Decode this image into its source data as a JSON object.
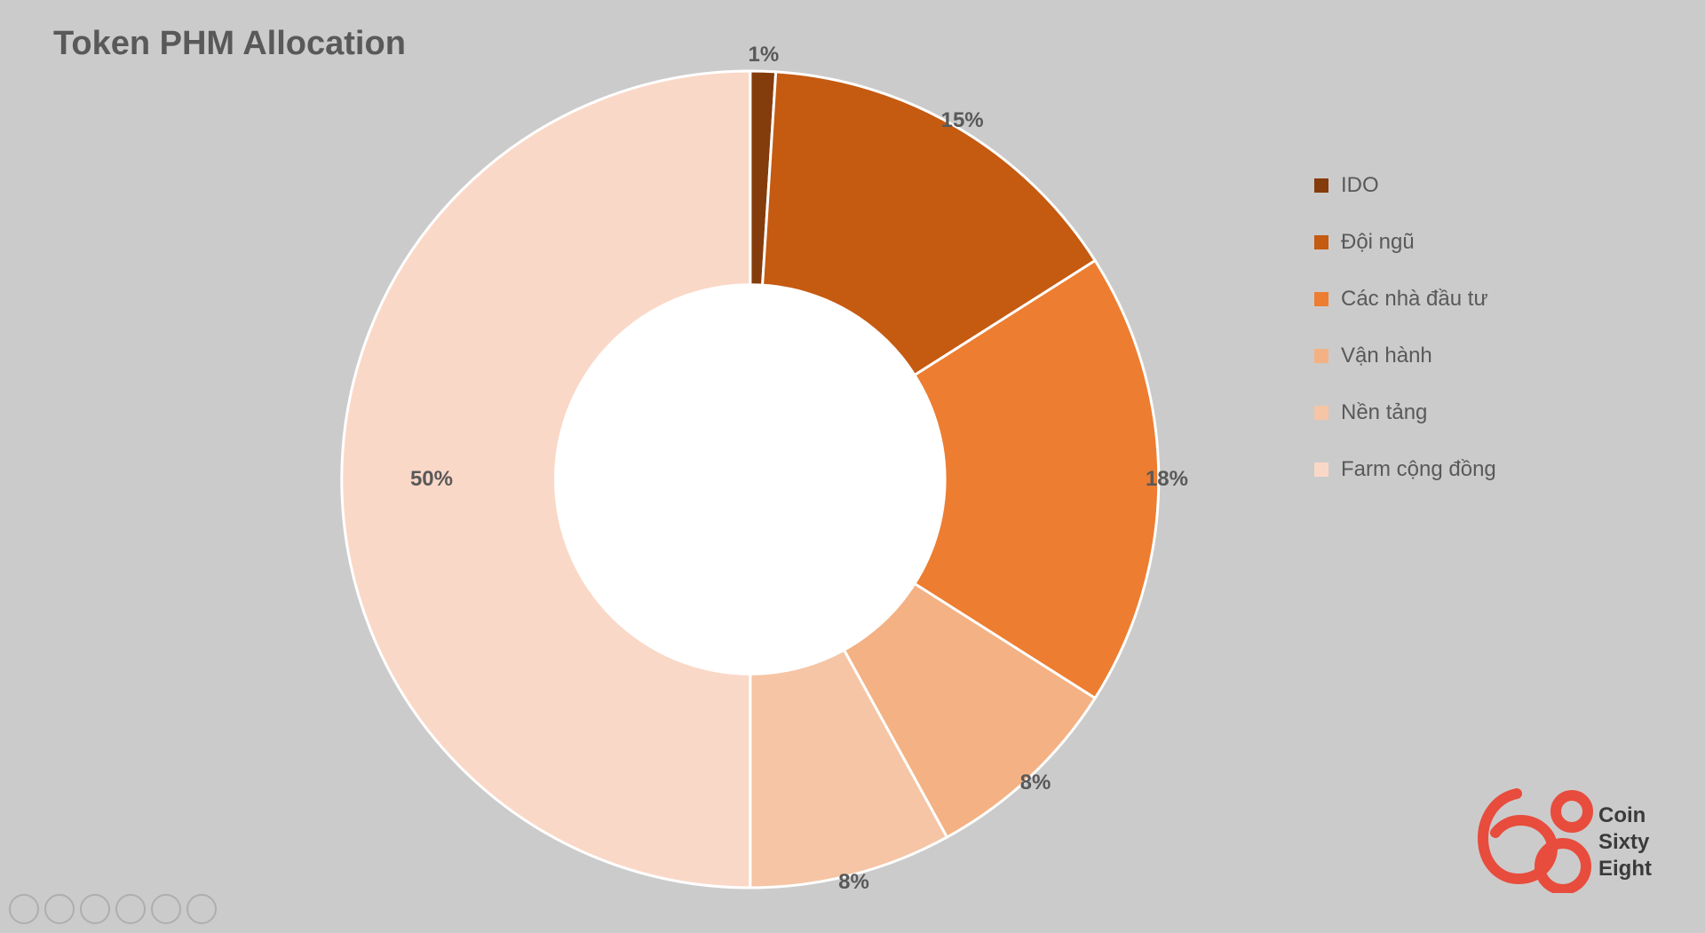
{
  "title": "Token PHM Allocation",
  "chart": {
    "type": "donut",
    "inner_radius_ratio": 0.48,
    "outer_radius": 460,
    "background_color": "#cccbcb",
    "center_hole_color": "#ffffff",
    "slice_border_color": "#ffffff",
    "slice_border_width": 3,
    "label_fontsize": 24,
    "label_fontweight": 600,
    "label_color": "#595959",
    "slices": [
      {
        "label": "IDO",
        "value": 1,
        "display": "1%",
        "color": "#843c0c"
      },
      {
        "label": "Đội ngũ",
        "value": 15,
        "display": "15%",
        "color": "#c55a11"
      },
      {
        "label": "Các nhà đầu tư",
        "value": 18,
        "display": "18%",
        "color": "#ed7d31"
      },
      {
        "label": "Vận hành",
        "value": 8,
        "display": "8%",
        "color": "#f4b183"
      },
      {
        "label": "Nền tảng",
        "value": 8,
        "display": "8%",
        "color": "#f5c5a5"
      },
      {
        "label": "Farm cộng đồng",
        "value": 50,
        "display": "50%",
        "color": "#fad8c7"
      }
    ]
  },
  "legend": {
    "items": [
      {
        "label": "IDO",
        "color": "#843c0c"
      },
      {
        "label": "Đội ngũ",
        "color": "#c55a11"
      },
      {
        "label": "Các nhà đầu tư",
        "color": "#ed7d31"
      },
      {
        "label": "Vận hành",
        "color": "#f4b183"
      },
      {
        "label": "Nền tảng",
        "color": "#f5c5a5"
      },
      {
        "label": "Farm cộng đồng",
        "color": "#fad8c7"
      }
    ],
    "swatch_size": 16,
    "fontsize": 24,
    "color": "#595959"
  },
  "logo": {
    "primary_color": "#e84c3d",
    "text_color": "#3b3b3b",
    "line1": "Coin",
    "line2": "Sixty",
    "line3": "Eight"
  }
}
